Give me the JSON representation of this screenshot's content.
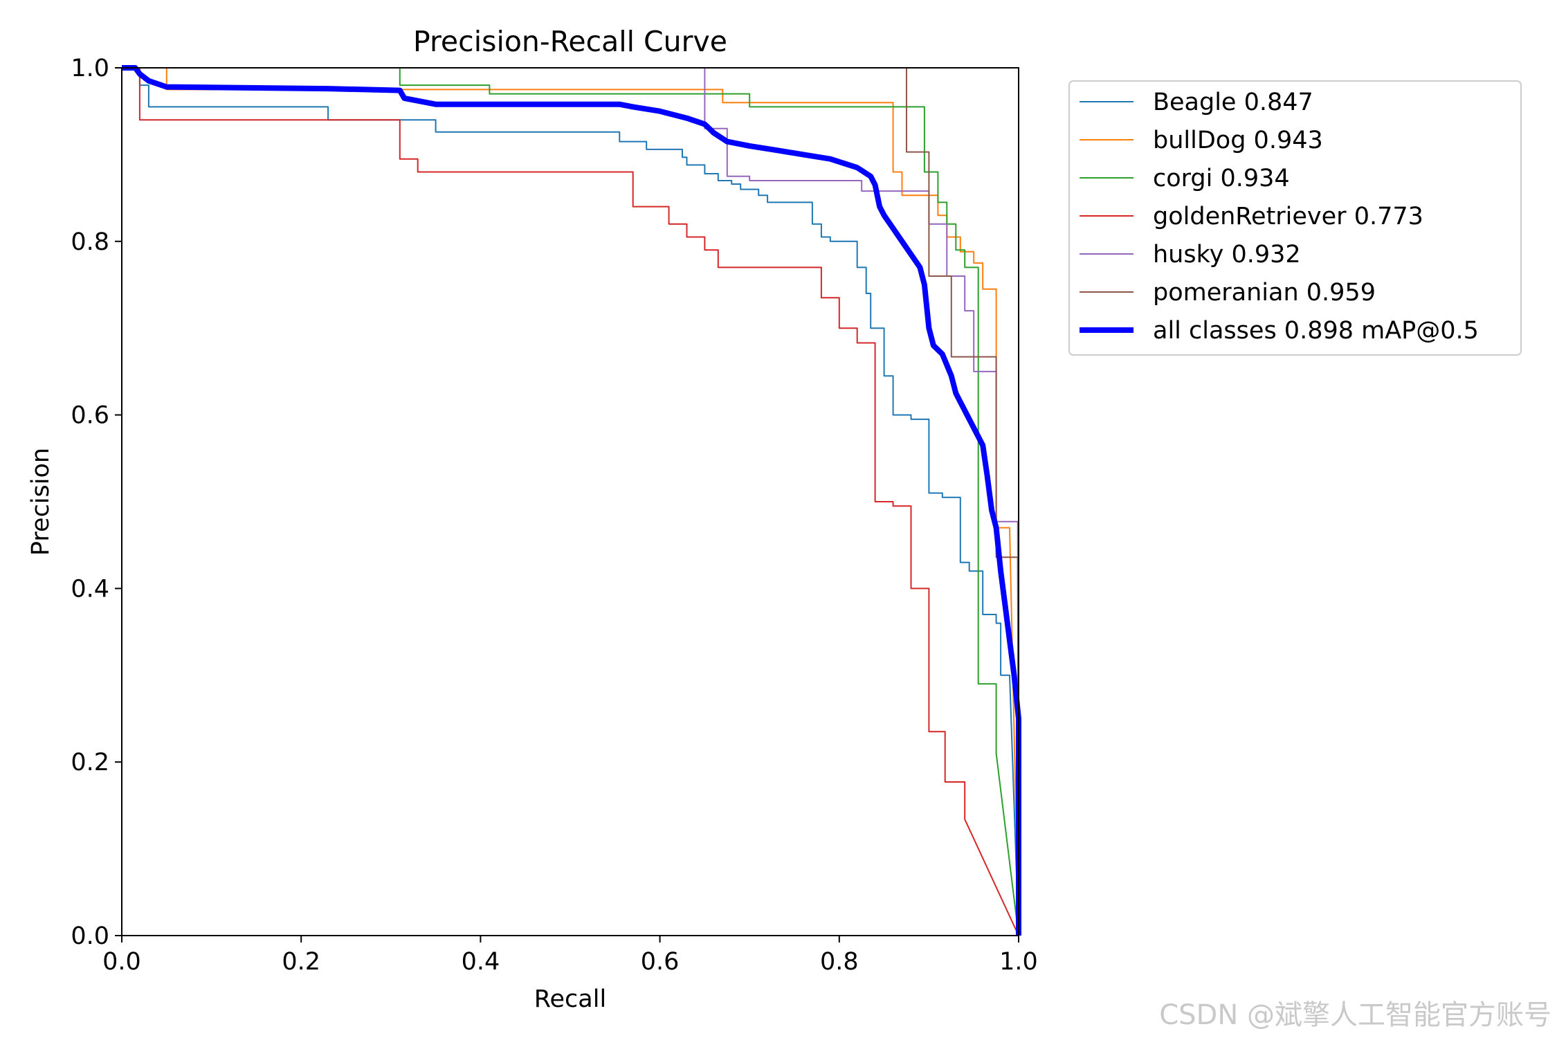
{
  "chart_data": {
    "type": "line",
    "title": "Precision-Recall Curve",
    "xlabel": "Recall",
    "ylabel": "Precision",
    "xlim": [
      0.0,
      1.0
    ],
    "ylim": [
      0.0,
      1.0
    ],
    "xticks": [
      "0.0",
      "0.2",
      "0.4",
      "0.6",
      "0.8",
      "1.0"
    ],
    "yticks": [
      "0.0",
      "0.2",
      "0.4",
      "0.6",
      "0.8",
      "1.0"
    ],
    "legend_position": "outside-right",
    "series": [
      {
        "name": "Beagle",
        "label": "Beagle 0.847",
        "ap": 0.847,
        "color": "#1f77b4",
        "width": 2,
        "points": [
          [
            0,
            1
          ],
          [
            0.02,
            1
          ],
          [
            0.02,
            0.98
          ],
          [
            0.03,
            0.98
          ],
          [
            0.03,
            0.955
          ],
          [
            0.23,
            0.955
          ],
          [
            0.23,
            0.94
          ],
          [
            0.35,
            0.94
          ],
          [
            0.35,
            0.926
          ],
          [
            0.555,
            0.926
          ],
          [
            0.555,
            0.915
          ],
          [
            0.585,
            0.915
          ],
          [
            0.585,
            0.906
          ],
          [
            0.625,
            0.906
          ],
          [
            0.625,
            0.897
          ],
          [
            0.63,
            0.897
          ],
          [
            0.63,
            0.888
          ],
          [
            0.65,
            0.888
          ],
          [
            0.65,
            0.878
          ],
          [
            0.665,
            0.878
          ],
          [
            0.665,
            0.87
          ],
          [
            0.68,
            0.87
          ],
          [
            0.68,
            0.866
          ],
          [
            0.69,
            0.866
          ],
          [
            0.69,
            0.86
          ],
          [
            0.71,
            0.86
          ],
          [
            0.71,
            0.853
          ],
          [
            0.72,
            0.853
          ],
          [
            0.72,
            0.845
          ],
          [
            0.77,
            0.845
          ],
          [
            0.77,
            0.82
          ],
          [
            0.78,
            0.82
          ],
          [
            0.78,
            0.805
          ],
          [
            0.79,
            0.805
          ],
          [
            0.79,
            0.8
          ],
          [
            0.82,
            0.8
          ],
          [
            0.82,
            0.77
          ],
          [
            0.83,
            0.77
          ],
          [
            0.83,
            0.74
          ],
          [
            0.835,
            0.74
          ],
          [
            0.835,
            0.7
          ],
          [
            0.85,
            0.7
          ],
          [
            0.85,
            0.645
          ],
          [
            0.86,
            0.645
          ],
          [
            0.86,
            0.6
          ],
          [
            0.88,
            0.6
          ],
          [
            0.88,
            0.595
          ],
          [
            0.9,
            0.595
          ],
          [
            0.9,
            0.51
          ],
          [
            0.915,
            0.51
          ],
          [
            0.915,
            0.505
          ],
          [
            0.935,
            0.505
          ],
          [
            0.935,
            0.43
          ],
          [
            0.945,
            0.43
          ],
          [
            0.945,
            0.42
          ],
          [
            0.96,
            0.42
          ],
          [
            0.96,
            0.37
          ],
          [
            0.975,
            0.37
          ],
          [
            0.975,
            0.36
          ],
          [
            0.98,
            0.36
          ],
          [
            0.98,
            0.3
          ],
          [
            0.99,
            0.3
          ],
          [
            1,
            0.0
          ]
        ]
      },
      {
        "name": "bullDog",
        "label": "bullDog 0.943",
        "ap": 0.943,
        "color": "#ff7f0e",
        "width": 2,
        "points": [
          [
            0,
            1
          ],
          [
            0.05,
            1
          ],
          [
            0.05,
            0.975
          ],
          [
            0.67,
            0.975
          ],
          [
            0.67,
            0.96
          ],
          [
            0.86,
            0.96
          ],
          [
            0.86,
            0.88
          ],
          [
            0.87,
            0.88
          ],
          [
            0.87,
            0.853
          ],
          [
            0.91,
            0.853
          ],
          [
            0.91,
            0.83
          ],
          [
            0.92,
            0.83
          ],
          [
            0.92,
            0.805
          ],
          [
            0.935,
            0.805
          ],
          [
            0.935,
            0.788
          ],
          [
            0.95,
            0.788
          ],
          [
            0.95,
            0.775
          ],
          [
            0.96,
            0.775
          ],
          [
            0.96,
            0.745
          ],
          [
            0.975,
            0.745
          ],
          [
            0.975,
            0.47
          ],
          [
            0.99,
            0.47
          ],
          [
            1,
            0.0
          ]
        ]
      },
      {
        "name": "corgi",
        "label": "corgi 0.934",
        "ap": 0.934,
        "color": "#2ca02c",
        "width": 2,
        "points": [
          [
            0.31,
            1
          ],
          [
            0.31,
            0.98
          ],
          [
            0.41,
            0.98
          ],
          [
            0.41,
            0.97
          ],
          [
            0.7,
            0.97
          ],
          [
            0.7,
            0.955
          ],
          [
            0.895,
            0.955
          ],
          [
            0.895,
            0.88
          ],
          [
            0.91,
            0.88
          ],
          [
            0.91,
            0.845
          ],
          [
            0.92,
            0.845
          ],
          [
            0.92,
            0.82
          ],
          [
            0.93,
            0.82
          ],
          [
            0.93,
            0.79
          ],
          [
            0.94,
            0.79
          ],
          [
            0.94,
            0.77
          ],
          [
            0.955,
            0.77
          ],
          [
            0.955,
            0.29
          ],
          [
            0.975,
            0.29
          ],
          [
            0.975,
            0.21
          ],
          [
            1,
            0.0
          ]
        ]
      },
      {
        "name": "goldenRetriever",
        "label": "goldenRetriever 0.773",
        "ap": 0.773,
        "color": "#d62728",
        "width": 2,
        "points": [
          [
            0,
            1
          ],
          [
            0.02,
            1
          ],
          [
            0.02,
            0.94
          ],
          [
            0.31,
            0.94
          ],
          [
            0.31,
            0.895
          ],
          [
            0.33,
            0.895
          ],
          [
            0.33,
            0.88
          ],
          [
            0.57,
            0.88
          ],
          [
            0.57,
            0.84
          ],
          [
            0.61,
            0.84
          ],
          [
            0.61,
            0.82
          ],
          [
            0.63,
            0.82
          ],
          [
            0.63,
            0.805
          ],
          [
            0.65,
            0.805
          ],
          [
            0.65,
            0.79
          ],
          [
            0.665,
            0.79
          ],
          [
            0.665,
            0.77
          ],
          [
            0.78,
            0.77
          ],
          [
            0.78,
            0.735
          ],
          [
            0.8,
            0.735
          ],
          [
            0.8,
            0.7
          ],
          [
            0.82,
            0.7
          ],
          [
            0.82,
            0.683
          ],
          [
            0.84,
            0.683
          ],
          [
            0.84,
            0.5
          ],
          [
            0.86,
            0.5
          ],
          [
            0.86,
            0.495
          ],
          [
            0.88,
            0.495
          ],
          [
            0.88,
            0.4
          ],
          [
            0.9,
            0.4
          ],
          [
            0.9,
            0.235
          ],
          [
            0.918,
            0.235
          ],
          [
            0.918,
            0.177
          ],
          [
            0.94,
            0.177
          ],
          [
            0.94,
            0.134
          ],
          [
            1,
            0.0
          ]
        ]
      },
      {
        "name": "husky",
        "label": "husky 0.932",
        "ap": 0.932,
        "color": "#9467bd",
        "width": 2,
        "points": [
          [
            0.65,
            1
          ],
          [
            0.65,
            0.93
          ],
          [
            0.675,
            0.93
          ],
          [
            0.675,
            0.875
          ],
          [
            0.7,
            0.875
          ],
          [
            0.7,
            0.87
          ],
          [
            0.825,
            0.87
          ],
          [
            0.825,
            0.858
          ],
          [
            0.9,
            0.858
          ],
          [
            0.9,
            0.82
          ],
          [
            0.92,
            0.82
          ],
          [
            0.92,
            0.76
          ],
          [
            0.94,
            0.76
          ],
          [
            0.94,
            0.72
          ],
          [
            0.95,
            0.72
          ],
          [
            0.95,
            0.65
          ],
          [
            0.975,
            0.65
          ],
          [
            0.975,
            0.477
          ],
          [
            0.999,
            0.477
          ],
          [
            1,
            0.0
          ]
        ]
      },
      {
        "name": "pomeranian",
        "label": "pomeranian 0.959",
        "ap": 0.959,
        "color": "#8c564b",
        "width": 2,
        "points": [
          [
            0.875,
            1
          ],
          [
            0.875,
            0.903
          ],
          [
            0.9,
            0.903
          ],
          [
            0.9,
            0.76
          ],
          [
            0.925,
            0.76
          ],
          [
            0.925,
            0.667
          ],
          [
            0.975,
            0.667
          ],
          [
            0.975,
            0.436
          ],
          [
            0.999,
            0.436
          ],
          [
            1,
            0.0
          ]
        ]
      },
      {
        "name": "all classes",
        "label": "all classes 0.898 mAP@0.5",
        "ap": 0.898,
        "color": "#0000ff",
        "width": 8,
        "points": [
          [
            0,
            1
          ],
          [
            0.015,
            1
          ],
          [
            0.02,
            0.993
          ],
          [
            0.03,
            0.985
          ],
          [
            0.05,
            0.978
          ],
          [
            0.23,
            0.976
          ],
          [
            0.31,
            0.974
          ],
          [
            0.315,
            0.965
          ],
          [
            0.33,
            0.962
          ],
          [
            0.35,
            0.958
          ],
          [
            0.555,
            0.958
          ],
          [
            0.57,
            0.955
          ],
          [
            0.6,
            0.95
          ],
          [
            0.63,
            0.942
          ],
          [
            0.65,
            0.935
          ],
          [
            0.66,
            0.925
          ],
          [
            0.675,
            0.915
          ],
          [
            0.7,
            0.91
          ],
          [
            0.73,
            0.905
          ],
          [
            0.76,
            0.9
          ],
          [
            0.79,
            0.895
          ],
          [
            0.82,
            0.885
          ],
          [
            0.835,
            0.875
          ],
          [
            0.84,
            0.865
          ],
          [
            0.845,
            0.84
          ],
          [
            0.85,
            0.83
          ],
          [
            0.86,
            0.815
          ],
          [
            0.87,
            0.8
          ],
          [
            0.88,
            0.785
          ],
          [
            0.89,
            0.77
          ],
          [
            0.895,
            0.75
          ],
          [
            0.9,
            0.7
          ],
          [
            0.905,
            0.68
          ],
          [
            0.915,
            0.67
          ],
          [
            0.925,
            0.645
          ],
          [
            0.93,
            0.625
          ],
          [
            0.94,
            0.605
          ],
          [
            0.95,
            0.585
          ],
          [
            0.96,
            0.565
          ],
          [
            0.965,
            0.53
          ],
          [
            0.97,
            0.49
          ],
          [
            0.975,
            0.47
          ],
          [
            0.98,
            0.42
          ],
          [
            0.985,
            0.38
          ],
          [
            0.99,
            0.34
          ],
          [
            0.995,
            0.3
          ],
          [
            1,
            0.25
          ],
          [
            1,
            0.0
          ]
        ]
      }
    ]
  },
  "watermark": "CSDN @斌擎人工智能官方账号"
}
